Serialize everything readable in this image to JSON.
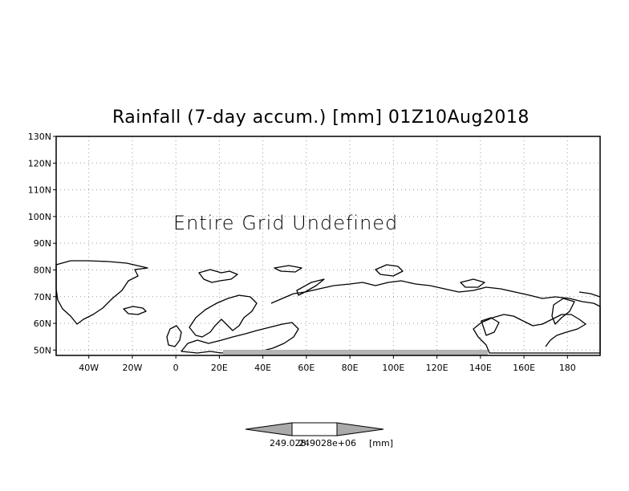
{
  "title": "Rainfall (7-day accum.) [mm] 01Z10Aug2018",
  "note": "Entire Grid Undefined",
  "axes": {
    "lat_labels": [
      "130N",
      "120N",
      "110N",
      "100N",
      "90N",
      "80N",
      "70N",
      "60N",
      "50N"
    ],
    "lon_labels": [
      "40W",
      "20W",
      "0",
      "20E",
      "40E",
      "60E",
      "80E",
      "100E",
      "120E",
      "140E",
      "160E",
      "180"
    ],
    "lat_range": [
      48,
      130
    ],
    "lon_range": [
      -55,
      195
    ]
  },
  "colorbar": {
    "left_label": "249.028",
    "right_label": "249028e+06",
    "units": "[mm]"
  },
  "colors": {
    "background": "#ffffff",
    "coastline": "#000000",
    "grid": "#9a9a9a",
    "colorbar_arrow": "#aaaaaa",
    "undefined_band": "#b4b4b4"
  }
}
